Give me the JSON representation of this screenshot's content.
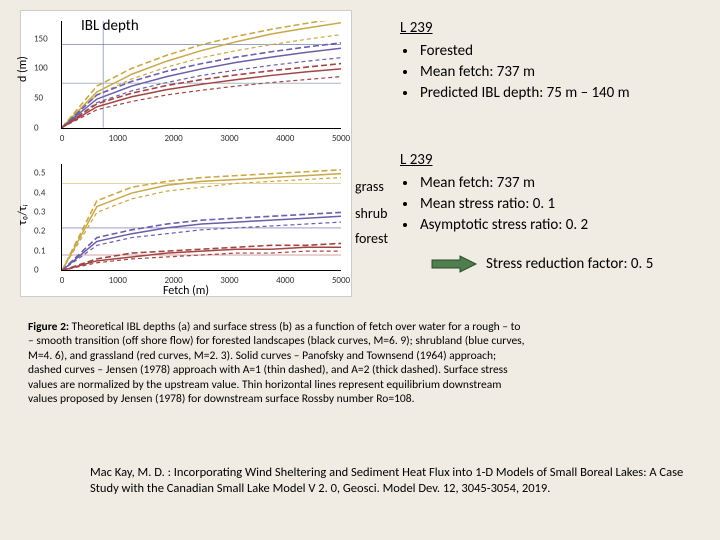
{
  "chart_top": {
    "title": "IBL depth",
    "ylabel": "d (m)",
    "xlim": [
      0,
      5000
    ],
    "ylim": [
      0,
      180
    ],
    "xticks": [
      0,
      1000,
      2000,
      3000,
      4000,
      5000
    ],
    "yticks": [
      0,
      50,
      100,
      150
    ],
    "series": [
      {
        "name": "forest-solid",
        "color": "#c9a84a",
        "dash": "",
        "width": 1.5,
        "y": [
          0,
          60,
          90,
          112,
          130,
          145,
          158,
          168,
          177
        ]
      },
      {
        "name": "forest-dash1",
        "color": "#c9a84a",
        "dash": "4 3",
        "width": 1.2,
        "y": [
          0,
          55,
          82,
          102,
          118,
          130,
          140,
          149,
          157
        ]
      },
      {
        "name": "forest-dash2",
        "color": "#c9a84a",
        "dash": "6 3",
        "width": 1.6,
        "y": [
          0,
          70,
          100,
          122,
          140,
          154,
          166,
          176,
          185
        ]
      },
      {
        "name": "shrub-solid",
        "color": "#6a5fa8",
        "dash": "",
        "width": 1.5,
        "y": [
          0,
          48,
          70,
          86,
          99,
          110,
          119,
          127,
          134
        ]
      },
      {
        "name": "shrub-dash1",
        "color": "#6a5fa8",
        "dash": "4 3",
        "width": 1.2,
        "y": [
          0,
          42,
          62,
          76,
          88,
          97,
          105,
          112,
          118
        ]
      },
      {
        "name": "shrub-dash2",
        "color": "#6a5fa8",
        "dash": "6 3",
        "width": 1.6,
        "y": [
          0,
          55,
          78,
          95,
          108,
          119,
          128,
          136,
          143
        ]
      },
      {
        "name": "grass-solid",
        "color": "#a34444",
        "dash": "",
        "width": 1.5,
        "y": [
          0,
          35,
          52,
          64,
          73,
          81,
          88,
          94,
          99
        ]
      },
      {
        "name": "grass-dash1",
        "color": "#a34444",
        "dash": "4 3",
        "width": 1.2,
        "y": [
          0,
          30,
          44,
          55,
          63,
          70,
          76,
          81,
          86
        ]
      },
      {
        "name": "grass-dash2",
        "color": "#a34444",
        "dash": "6 3",
        "width": 1.6,
        "y": [
          0,
          40,
          58,
          71,
          81,
          89,
          96,
          102,
          108
        ]
      }
    ],
    "hlines": [
      {
        "y": 75,
        "color": "#5b6ea0"
      },
      {
        "y": 140,
        "color": "#5b6ea0"
      }
    ],
    "vline": {
      "x": 737,
      "color": "#5b6ea0"
    }
  },
  "chart_bot": {
    "ylabel": "τ₀/τᵢ",
    "xlabel": "Fetch (m)",
    "xlim": [
      0,
      5000
    ],
    "ylim": [
      0,
      0.55
    ],
    "xticks": [
      0,
      1000,
      2000,
      3000,
      4000,
      5000
    ],
    "yticks": [
      0,
      0.1,
      0.2,
      0.3,
      0.4,
      0.5
    ],
    "series": [
      {
        "name": "grass-solid",
        "color": "#c9a84a",
        "dash": "",
        "width": 1.5,
        "y": [
          0,
          0.33,
          0.4,
          0.44,
          0.46,
          0.47,
          0.48,
          0.49,
          0.5
        ]
      },
      {
        "name": "grass-dash1",
        "color": "#c9a84a",
        "dash": "4 3",
        "width": 1.2,
        "y": [
          0,
          0.3,
          0.37,
          0.41,
          0.43,
          0.45,
          0.46,
          0.47,
          0.48
        ]
      },
      {
        "name": "grass-dash2",
        "color": "#c9a84a",
        "dash": "6 3",
        "width": 1.6,
        "y": [
          0,
          0.36,
          0.43,
          0.46,
          0.48,
          0.49,
          0.5,
          0.51,
          0.52
        ]
      },
      {
        "name": "shrub-solid",
        "color": "#6a5fa8",
        "dash": "",
        "width": 1.5,
        "y": [
          0,
          0.15,
          0.19,
          0.22,
          0.24,
          0.25,
          0.26,
          0.27,
          0.28
        ]
      },
      {
        "name": "shrub-dash1",
        "color": "#6a5fa8",
        "dash": "4 3",
        "width": 1.2,
        "y": [
          0,
          0.13,
          0.17,
          0.19,
          0.21,
          0.22,
          0.23,
          0.24,
          0.25
        ]
      },
      {
        "name": "shrub-dash2",
        "color": "#6a5fa8",
        "dash": "6 3",
        "width": 1.6,
        "y": [
          0,
          0.17,
          0.21,
          0.24,
          0.26,
          0.27,
          0.28,
          0.29,
          0.3
        ]
      },
      {
        "name": "forest-solid",
        "color": "#a34444",
        "dash": "",
        "width": 1.5,
        "y": [
          0,
          0.05,
          0.07,
          0.09,
          0.1,
          0.11,
          0.11,
          0.12,
          0.12
        ]
      },
      {
        "name": "forest-dash1",
        "color": "#a34444",
        "dash": "4 3",
        "width": 1.2,
        "y": [
          0,
          0.04,
          0.06,
          0.07,
          0.08,
          0.09,
          0.09,
          0.1,
          0.1
        ]
      },
      {
        "name": "forest-dash2",
        "color": "#a34444",
        "dash": "6 3",
        "width": 1.6,
        "y": [
          0,
          0.06,
          0.09,
          0.1,
          0.11,
          0.12,
          0.13,
          0.13,
          0.14
        ]
      }
    ],
    "hlines": [
      {
        "y": 0.45,
        "color": "#c9a84a"
      },
      {
        "y": 0.22,
        "color": "#6a5fa8"
      },
      {
        "y": 0.08,
        "color": "#a34444"
      }
    ],
    "labels": [
      {
        "text": "grass",
        "top_pct": 18
      },
      {
        "text": "shrub",
        "top_pct": 45
      },
      {
        "text": "forest",
        "top_pct": 70
      }
    ]
  },
  "info_top": {
    "head": "L 239",
    "items": [
      "Forested",
      "Mean fetch: 737 m",
      "Predicted IBL depth: 75 m – 140 m"
    ]
  },
  "info_bot": {
    "head": "L 239",
    "items": [
      "Mean fetch: 737 m",
      "Mean stress ratio: 0. 1",
      "Asymptotic stress ratio: 0. 2"
    ]
  },
  "arrow_row": {
    "text": "Stress reduction factor: 0. 5",
    "arrow_fill": "#4f7f4f",
    "arrow_stroke": "#2a4a2a"
  },
  "caption": {
    "lead": "Figure 2:",
    "body": " Theoretical IBL depths (a) and surface stress (b) as a function of fetch over water for a rough – to – smooth transition (off shore flow) for forested landscapes (black curves, M=6. 9); shrubland (blue curves, M=4. 6), and grassland (red curves, M=2. 3). Solid curves – Panofsky and Townsend (1964) approach; dashed curves – Jensen (1978) approach with A=1 (thin dashed), and A=2 (thick dashed). Surface stress values are normalized by the upstream value. Thin horizontal lines represent equilibrium downstream values proposed by Jensen (1978) for downstream surface Rossby number Ro=108."
  },
  "citation": "Mac Kay, M. D. : Incorporating Wind Sheltering and Sediment Heat Flux into 1-D Models of Small Boreal Lakes: A Case Study with the Canadian Small Lake Model V 2. 0, Geosci. Model Dev. 12, 3045-3054, 2019."
}
